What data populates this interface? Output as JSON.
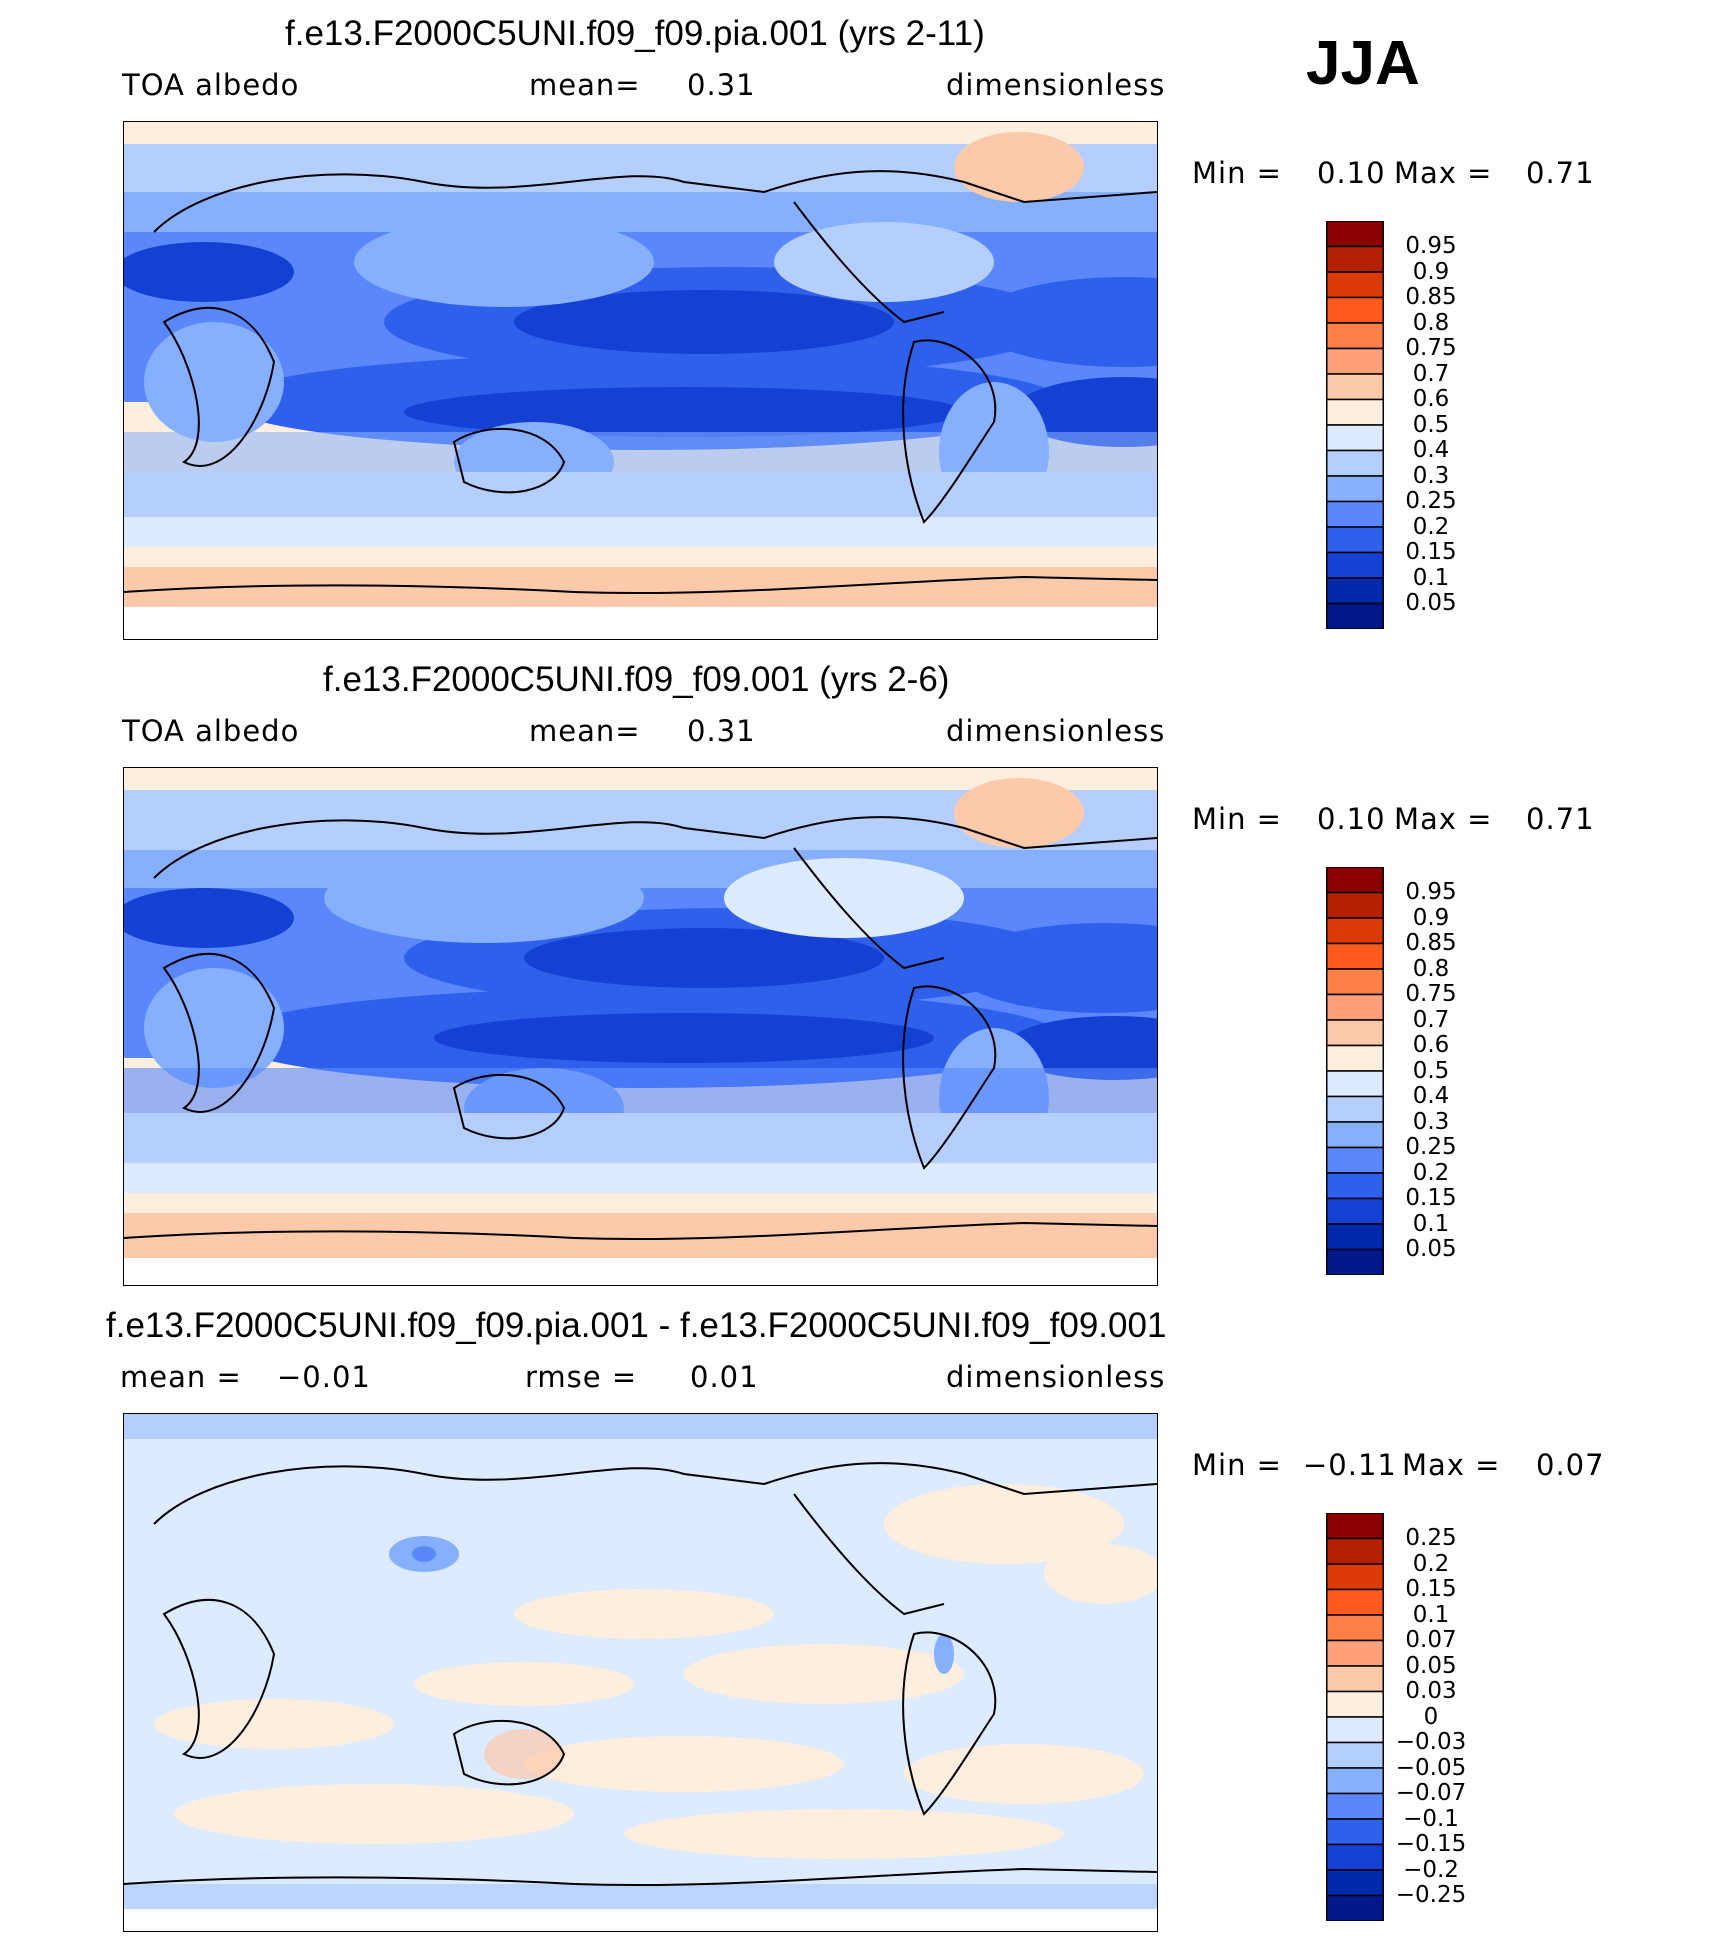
{
  "season": "JJA",
  "panels": [
    {
      "title": "f.e13.F2000C5UNI.f09_f09.pia.001 (yrs 2-11)",
      "left_label": "TOA  albedo",
      "center_label": "mean=",
      "center_value": "0.31",
      "right_label": "dimensionless",
      "min_label": "Min  =",
      "min_value": "0.10",
      "max_label": "Max  =",
      "max_value": "0.71",
      "colorbar": {
        "labels": [
          "0.95",
          "0.9",
          "0.85",
          "0.8",
          "0.75",
          "0.7",
          "0.6",
          "0.5",
          "0.4",
          "0.3",
          "0.25",
          "0.2",
          "0.15",
          "0.1",
          "0.05"
        ],
        "colors": [
          "#8b0000",
          "#b52000",
          "#dc3a08",
          "#ff5a1e",
          "#ff7f47",
          "#ffa07a",
          "#fcc9aa",
          "#fdeedd",
          "#dcebff",
          "#b4cffe",
          "#86b0fd",
          "#5a88fc",
          "#2f60ec",
          "#1540d4",
          "#0028ab",
          "#00188a"
        ]
      }
    },
    {
      "title": "f.e13.F2000C5UNI.f09_f09.001 (yrs 2-6)",
      "left_label": "TOA  albedo",
      "center_label": "mean=",
      "center_value": "0.31",
      "right_label": "dimensionless",
      "min_label": "Min  =",
      "min_value": "0.10",
      "max_label": "Max  =",
      "max_value": "0.71",
      "colorbar": {
        "labels": [
          "0.95",
          "0.9",
          "0.85",
          "0.8",
          "0.75",
          "0.7",
          "0.6",
          "0.5",
          "0.4",
          "0.3",
          "0.25",
          "0.2",
          "0.15",
          "0.1",
          "0.05"
        ],
        "colors": [
          "#8b0000",
          "#b52000",
          "#dc3a08",
          "#ff5a1e",
          "#ff7f47",
          "#ffa07a",
          "#fcc9aa",
          "#fdeedd",
          "#dcebff",
          "#b4cffe",
          "#86b0fd",
          "#5a88fc",
          "#2f60ec",
          "#1540d4",
          "#0028ab",
          "#00188a"
        ]
      }
    },
    {
      "title": "f.e13.F2000C5UNI.f09_f09.pia.001 - f.e13.F2000C5UNI.f09_f09.001",
      "left_label": "mean  =",
      "left_value": "−0.01",
      "center_label": "rmse  =",
      "center_value": "0.01",
      "right_label": "dimensionless",
      "min_label": "Min  =",
      "min_value": "−0.11",
      "max_label": "Max  =",
      "max_value": "0.07",
      "colorbar": {
        "labels": [
          "0.25",
          "0.2",
          "0.15",
          "0.1",
          "0.07",
          "0.05",
          "0.03",
          "0",
          "−0.03",
          "−0.05",
          "−0.07",
          "−0.1",
          "−0.15",
          "−0.2",
          "−0.25"
        ],
        "colors": [
          "#8b0000",
          "#b52000",
          "#dc3a08",
          "#ff5a1e",
          "#ff7f47",
          "#ffa07a",
          "#fcc9aa",
          "#fdeedd",
          "#dcebff",
          "#b4cffe",
          "#86b0fd",
          "#5a88fc",
          "#2f60ec",
          "#1540d4",
          "#0028ab",
          "#00188a"
        ]
      }
    }
  ],
  "chart_data": [
    {
      "type": "heatmap",
      "title": "f.e13.F2000C5UNI.f09_f09.pia.001 (yrs 2-11)",
      "variable": "TOA  albedo",
      "units": "dimensionless",
      "mean": 0.31,
      "min": 0.1,
      "max": 0.71,
      "contour_levels": [
        0.05,
        0.1,
        0.15,
        0.2,
        0.25,
        0.3,
        0.4,
        0.5,
        0.6,
        0.7,
        0.75,
        0.8,
        0.85,
        0.9,
        0.95
      ]
    },
    {
      "type": "heatmap",
      "title": "f.e13.F2000C5UNI.f09_f09.001 (yrs 2-6)",
      "variable": "TOA  albedo",
      "units": "dimensionless",
      "mean": 0.31,
      "min": 0.1,
      "max": 0.71,
      "contour_levels": [
        0.05,
        0.1,
        0.15,
        0.2,
        0.25,
        0.3,
        0.4,
        0.5,
        0.6,
        0.7,
        0.75,
        0.8,
        0.85,
        0.9,
        0.95
      ]
    },
    {
      "type": "heatmap",
      "title": "f.e13.F2000C5UNI.f09_f09.pia.001 - f.e13.F2000C5UNI.f09_f09.001",
      "units": "dimensionless",
      "mean": -0.01,
      "rmse": 0.01,
      "min": -0.11,
      "max": 0.07,
      "contour_levels": [
        -0.25,
        -0.2,
        -0.15,
        -0.1,
        -0.07,
        -0.05,
        -0.03,
        0,
        0.03,
        0.05,
        0.07,
        0.1,
        0.15,
        0.2,
        0.25
      ]
    }
  ]
}
